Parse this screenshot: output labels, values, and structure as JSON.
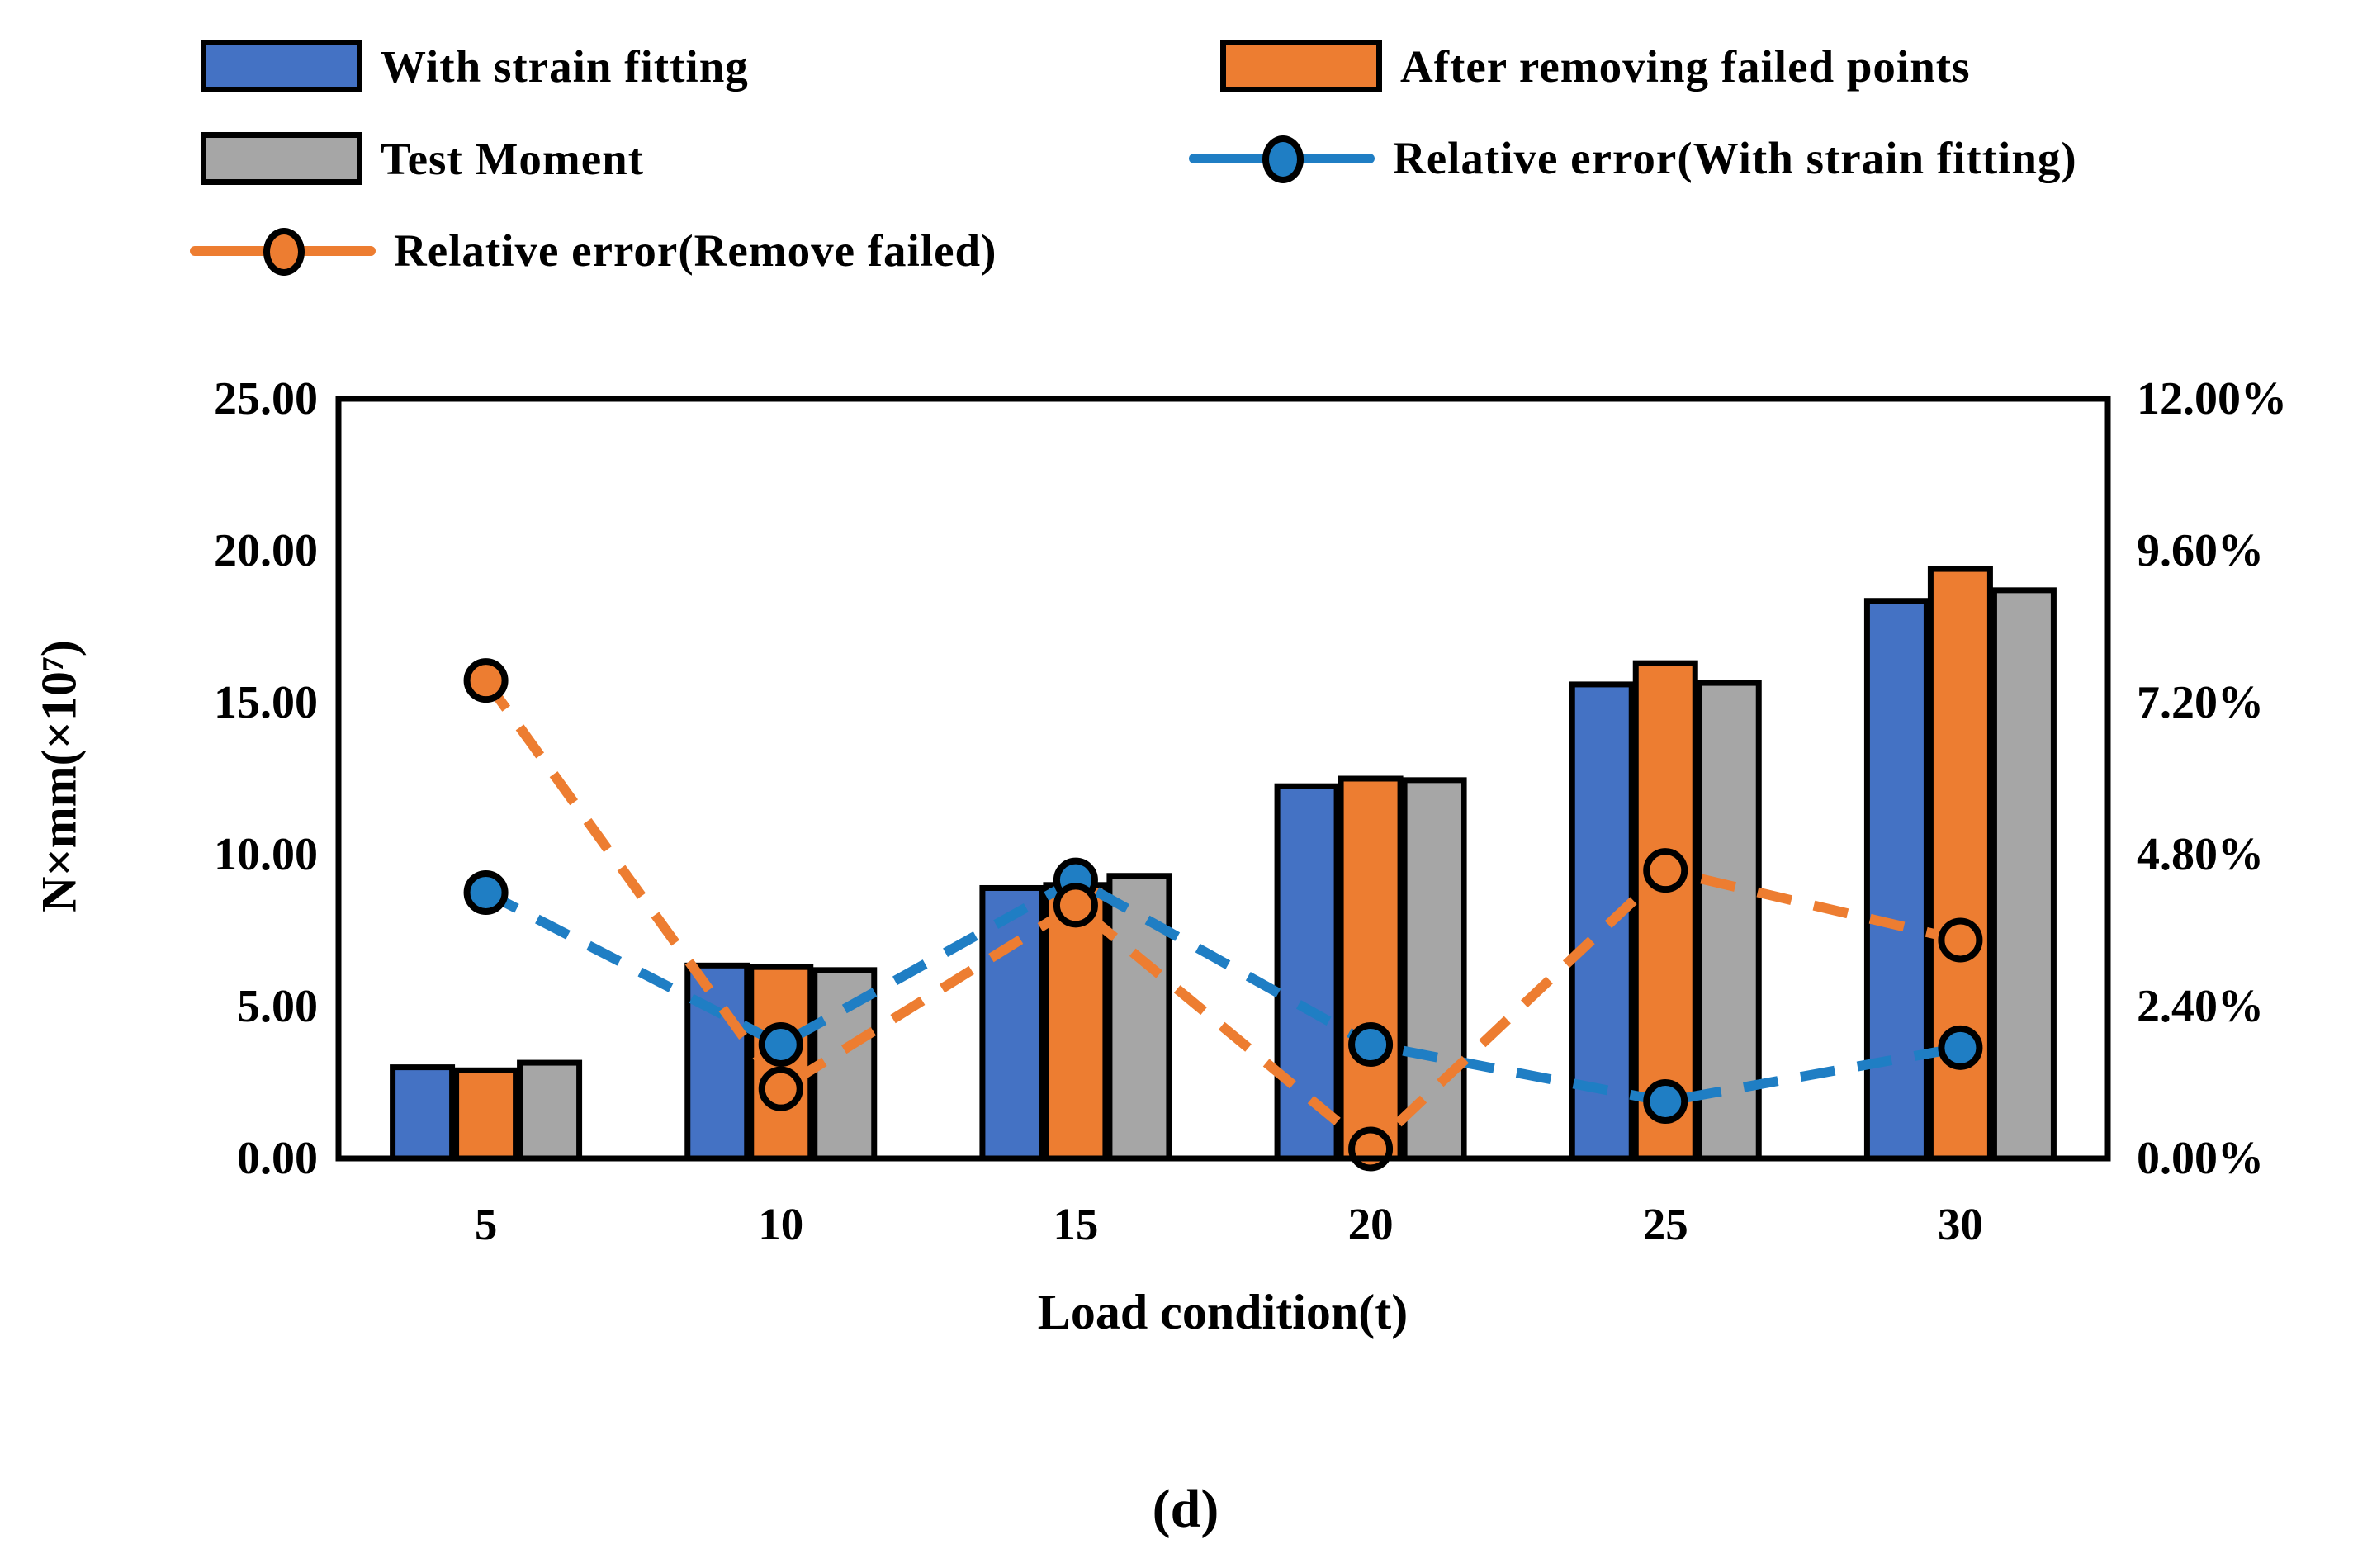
{
  "legend": {
    "items": [
      {
        "label": "With strain fitting",
        "type": "bar-swatch",
        "color": "#4472C4"
      },
      {
        "label": "After removing failed points",
        "type": "bar-swatch",
        "color": "#ED7D31"
      },
      {
        "label": "Test Moment",
        "type": "bar-swatch",
        "color": "#A6A6A6"
      },
      {
        "label": "Relative error(With strain fitting)",
        "type": "line-marker",
        "color": "#1F7EC4"
      },
      {
        "label": "Relative error(Remove failed)",
        "type": "line-marker",
        "color": "#ED7D31"
      }
    ]
  },
  "caption": "(d)",
  "chart_data": {
    "type": "bar+line",
    "title": "",
    "categories": [
      "5",
      "10",
      "15",
      "20",
      "25",
      "30"
    ],
    "bar_series": [
      {
        "name": "With strain fitting",
        "color": "#4472C4",
        "values": [
          3.0,
          6.35,
          8.9,
          12.25,
          15.6,
          18.35
        ]
      },
      {
        "name": "After removing failed points",
        "color": "#ED7D31",
        "values": [
          2.9,
          6.3,
          9.0,
          12.5,
          16.3,
          19.4
        ]
      },
      {
        "name": "Test Moment",
        "color": "#A6A6A6",
        "values": [
          3.15,
          6.2,
          9.3,
          12.45,
          15.65,
          18.7
        ]
      }
    ],
    "line_series": [
      {
        "name": "Relative error(With strain fitting)",
        "color": "#1F7EC4",
        "marker_fill": "#1F7EC4",
        "values_percent": [
          4.2,
          1.8,
          4.4,
          1.8,
          0.9,
          1.75
        ]
      },
      {
        "name": "Relative error(Remove failed)",
        "color": "#ED7D31",
        "marker_fill": "#ED7D31",
        "values_percent": [
          7.55,
          1.1,
          4.0,
          0.15,
          4.55,
          3.45
        ]
      }
    ],
    "left_axis": {
      "label": "N×mm(×10⁷)",
      "min": 0,
      "max": 25,
      "ticks": [
        "0.00",
        "5.00",
        "10.00",
        "15.00",
        "20.00",
        "25.00"
      ]
    },
    "right_axis": {
      "label": "",
      "min": 0,
      "max": 12,
      "ticks": [
        "0.00%",
        "2.40%",
        "4.80%",
        "7.20%",
        "9.60%",
        "12.00%"
      ]
    },
    "x_axis": {
      "label": "Load condition(t)"
    },
    "grid": false,
    "legend_position": "top",
    "frame_color": "#000000",
    "background": "#ffffff"
  }
}
